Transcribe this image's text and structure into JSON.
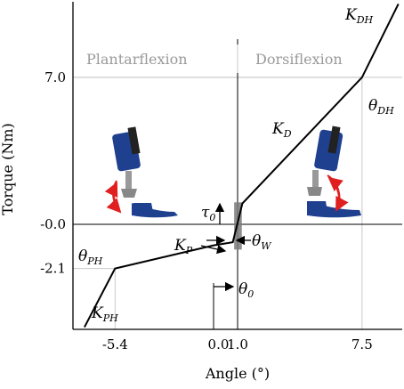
{
  "chart_data": {
    "type": "line",
    "xlabel": "Angle (°)",
    "ylabel": "Torque (Nm)",
    "x_tick_labels": [
      "-5.4",
      "0.0",
      "1.0",
      "7.5"
    ],
    "x_ticks": [
      -5.4,
      0.0,
      1.0,
      7.5
    ],
    "y_tick_labels": [
      "7.0",
      "-0.0",
      "-2.1"
    ],
    "y_ticks": [
      7.0,
      0.0,
      -2.1
    ],
    "xlim": [
      -7.6,
      9.6
    ],
    "ylim": [
      -5.0,
      10.6
    ],
    "regions": [
      "Plantarflexion",
      "Dorsiflexion"
    ],
    "series": [
      {
        "x": [
          -7.0,
          -5.4,
          -0.25,
          0.75,
          1.25,
          7.5,
          9.4
        ],
        "y": [
          -4.9,
          -2.1,
          -1.0,
          -0.85,
          1.0,
          7.0,
          10.5
        ]
      }
    ],
    "annotations": {
      "K_DH": {
        "base": "K",
        "sub": "DH"
      },
      "theta_DH": {
        "base": "θ",
        "sub": "DH"
      },
      "K_D": {
        "base": "K",
        "sub": "D"
      },
      "tau_0": {
        "base": "τ",
        "sub": "0"
      },
      "theta_W": {
        "base": "θ",
        "sub": "W"
      },
      "K_P": {
        "base": "K",
        "sub": "P"
      },
      "theta_PH": {
        "base": "θ",
        "sub": "PH"
      },
      "K_PH": {
        "base": "K",
        "sub": "PH"
      },
      "theta_0": {
        "base": "θ",
        "sub": "0"
      }
    },
    "colors": {
      "curve": "#000000",
      "grid": "#c8c8c8",
      "region_text": "#9a9a9a",
      "band": "#7a7a7a",
      "arrow_red": "#e02020",
      "prosthesis_blue": "#1f3f8f"
    }
  }
}
